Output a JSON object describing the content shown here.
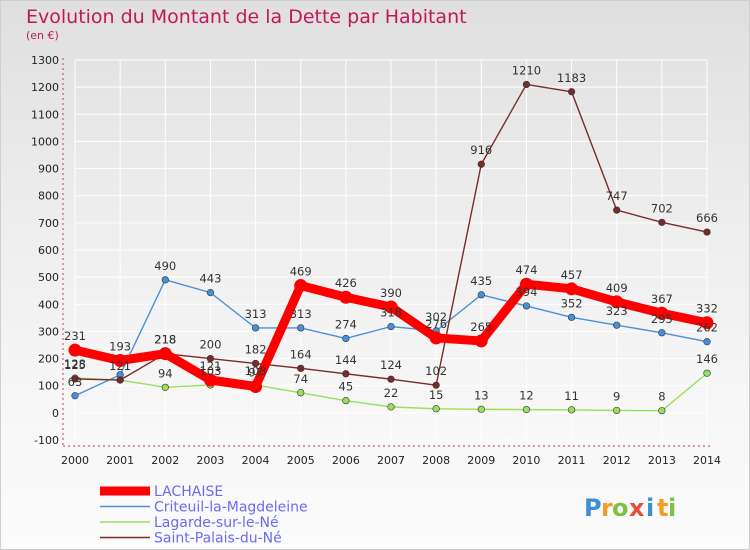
{
  "chart_data": {
    "type": "line",
    "title": "Evolution du Montant de la Dette par Habitant",
    "subtitle": "(en €)",
    "ylim": [
      -100,
      1300
    ],
    "y_ticks": [
      "-100",
      "0",
      "100",
      "200",
      "300",
      "400",
      "500",
      "600",
      "700",
      "800",
      "900",
      "1000",
      "1100",
      "1200",
      "1300"
    ],
    "y_tick_values": [
      -100,
      0,
      100,
      200,
      300,
      400,
      500,
      600,
      700,
      800,
      900,
      1000,
      1100,
      1200,
      1300
    ],
    "x": [
      "2000",
      "2001",
      "2002",
      "2003",
      "2004",
      "2005",
      "2006",
      "2007",
      "2008",
      "2009",
      "2010",
      "2011",
      "2012",
      "2013",
      "2014"
    ],
    "grid": true,
    "legend_position": "bottom-left",
    "series": [
      {
        "name": "LACHAISE",
        "color": "#ff0000",
        "values": [
          231,
          193,
          218,
          121,
          97,
          469,
          426,
          390,
          276,
          265,
          474,
          457,
          409,
          367,
          332
        ],
        "labels": [
          "231",
          "193",
          "218",
          "121",
          "97",
          "469",
          "426",
          "390",
          "276",
          "265",
          "474",
          "457",
          "409",
          "367",
          "332"
        ]
      },
      {
        "name": "Criteuil-la-Magdeleine",
        "color": "#4a90d9",
        "values": [
          63,
          140,
          490,
          443,
          313,
          313,
          274,
          318,
          302,
          435,
          394,
          352,
          323,
          295,
          262
        ],
        "labels": [
          "63",
          "",
          "490",
          "443",
          "313",
          "313",
          "274",
          "318",
          "302",
          "435",
          "394",
          "352",
          "323",
          "295",
          "262"
        ]
      },
      {
        "name": "Lagarde-sur-le-Né",
        "color": "#99e05a",
        "values": [
          128,
          121,
          94,
          103,
          103,
          74,
          45,
          22,
          15,
          13,
          12,
          11,
          9,
          8,
          146
        ],
        "labels": [
          "128",
          "121",
          "94",
          "103",
          "103",
          "74",
          "45",
          "22",
          "15",
          "13",
          "12",
          "11",
          "9",
          "8",
          "146"
        ]
      },
      {
        "name": "Saint-Palais-du-Né",
        "color": "#7a2a2a",
        "values": [
          125,
          121,
          218,
          200,
          182,
          164,
          144,
          124,
          102,
          916,
          1210,
          1183,
          747,
          702,
          666
        ],
        "labels": [
          "125",
          "",
          "218",
          "200",
          "182",
          "164",
          "144",
          "124",
          "102",
          "916",
          "1210",
          "1183",
          "747",
          "702",
          "666"
        ]
      }
    ]
  },
  "logo": {
    "letters": [
      "P",
      "r",
      "o",
      "x",
      "i",
      "t",
      "i"
    ],
    "colors": [
      "#3b8fd6",
      "#f39c1f",
      "#7cc242",
      "#e84c3d",
      "#3b8fd6",
      "#f39c1f",
      "#7cc242"
    ]
  }
}
